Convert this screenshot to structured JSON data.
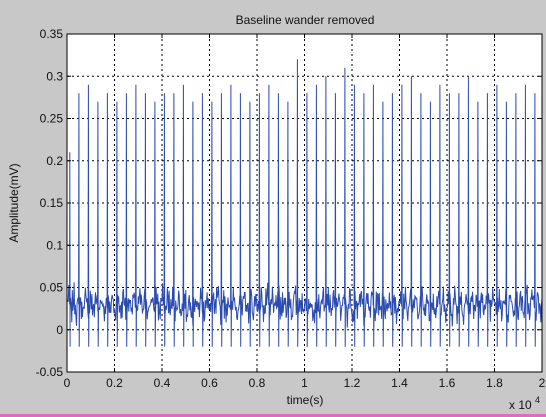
{
  "window": {
    "background": "#c8c8c8",
    "bottom_accent": "#e06cc0"
  },
  "chart_data": {
    "type": "line",
    "title": "Baseline wander removed",
    "xlabel": "time(s)",
    "ylabel": "Amplitude(mV)",
    "xlim": [
      0,
      20000
    ],
    "ylim": [
      -0.05,
      0.35
    ],
    "x_scale_label": "x 10",
    "x_scale_exponent": "4",
    "grid": true,
    "grid_style": "dotted",
    "xticks": [
      0,
      2000,
      4000,
      6000,
      8000,
      10000,
      12000,
      14000,
      16000,
      18000,
      20000
    ],
    "xtick_labels": [
      "0",
      "0.2",
      "0.4",
      "0.6",
      "0.8",
      "1",
      "1.2",
      "1.4",
      "1.6",
      "1.8",
      "2"
    ],
    "yticks": [
      -0.05,
      0,
      0.05,
      0.1,
      0.15,
      0.2,
      0.25,
      0.3,
      0.35
    ],
    "ytick_labels": [
      "-0.05",
      "0",
      "0.05",
      "0.1",
      "0.15",
      "0.2",
      "0.25",
      "0.3",
      "0.35"
    ],
    "series": [
      {
        "color": "#2a4bb0",
        "baseline_mean": 0.03,
        "noise_amplitude": 0.022,
        "beat_times": [
          120,
          500,
          900,
          1300,
          1700,
          2100,
          2500,
          2900,
          3300,
          3700,
          4100,
          4500,
          4900,
          5300,
          5700,
          6100,
          6500,
          6900,
          7300,
          7700,
          8100,
          8500,
          8900,
          9300,
          9700,
          10100,
          10500,
          10900,
          11300,
          11700,
          12100,
          12500,
          12900,
          13300,
          13700,
          14100,
          14500,
          14900,
          15300,
          15700,
          16100,
          16500,
          16900,
          17300,
          17700,
          18100,
          18500,
          18900,
          19300,
          19700
        ],
        "peak_values": [
          0.21,
          0.28,
          0.29,
          0.27,
          0.28,
          0.27,
          0.28,
          0.29,
          0.28,
          0.27,
          0.28,
          0.28,
          0.29,
          0.27,
          0.28,
          0.27,
          0.28,
          0.29,
          0.28,
          0.27,
          0.28,
          0.29,
          0.28,
          0.27,
          0.32,
          0.28,
          0.29,
          0.3,
          0.28,
          0.31,
          0.29,
          0.28,
          0.29,
          0.27,
          0.28,
          0.29,
          0.3,
          0.28,
          0.27,
          0.29,
          0.28,
          0.28,
          0.3,
          0.27,
          0.28,
          0.29,
          0.27,
          0.28,
          0.29,
          0.28
        ],
        "trough_values": [
          -0.02,
          -0.02,
          -0.02,
          -0.02,
          -0.02,
          -0.02,
          -0.02,
          -0.02,
          -0.02,
          -0.02,
          -0.02,
          -0.02,
          -0.02,
          -0.02,
          -0.02,
          -0.02,
          -0.02,
          -0.02,
          -0.02,
          -0.02,
          -0.02,
          -0.02,
          -0.02,
          -0.02,
          -0.02,
          -0.02,
          -0.02,
          -0.02,
          -0.02,
          -0.02,
          -0.02,
          -0.02,
          -0.02,
          -0.02,
          -0.02,
          -0.02,
          -0.02,
          -0.02,
          -0.02,
          -0.02,
          -0.02,
          -0.02,
          -0.02,
          -0.02,
          -0.02,
          -0.02,
          -0.02,
          -0.02,
          -0.02,
          -0.02
        ]
      }
    ]
  }
}
